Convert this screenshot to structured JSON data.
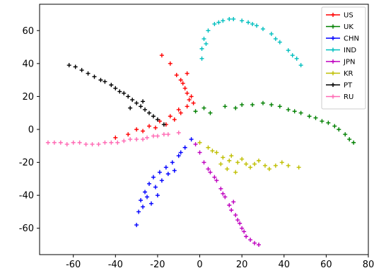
{
  "chart_data": {
    "type": "scatter",
    "xlim": [
      -76,
      80
    ],
    "ylim": [
      -76,
      76
    ],
    "x_ticks": [
      -60,
      -40,
      -20,
      0,
      20,
      40,
      60,
      80
    ],
    "y_ticks": [
      -60,
      -40,
      -20,
      0,
      20,
      40,
      60
    ],
    "grid": false,
    "legend_position": "top-right",
    "marker": "+",
    "series": [
      {
        "name": "US",
        "color": "#ff0000",
        "points": [
          [
            -18,
            45
          ],
          [
            -14,
            40
          ],
          [
            -11,
            33
          ],
          [
            -8,
            28
          ],
          [
            -6,
            22
          ],
          [
            -5,
            18
          ],
          [
            -6,
            14
          ],
          [
            -9,
            10
          ],
          [
            -12,
            6
          ],
          [
            -16,
            3
          ],
          [
            -21,
            1
          ],
          [
            -27,
            -1
          ],
          [
            -34,
            -3
          ],
          [
            -40,
            -5
          ],
          [
            -9,
            30
          ],
          [
            -7,
            25
          ],
          [
            -4,
            20
          ],
          [
            -10,
            12
          ],
          [
            -14,
            8
          ],
          [
            -19,
            5
          ],
          [
            -24,
            2
          ],
          [
            -30,
            0
          ],
          [
            -6,
            34
          ],
          [
            -3,
            16
          ]
        ]
      },
      {
        "name": "UK",
        "color": "#008000",
        "points": [
          [
            20,
            15
          ],
          [
            30,
            16
          ],
          [
            38,
            14
          ],
          [
            45,
            11
          ],
          [
            52,
            8
          ],
          [
            58,
            5
          ],
          [
            64,
            2
          ],
          [
            69,
            -3
          ],
          [
            73,
            -8
          ],
          [
            25,
            15
          ],
          [
            34,
            15
          ],
          [
            42,
            12
          ],
          [
            48,
            10
          ],
          [
            55,
            7
          ],
          [
            61,
            4
          ],
          [
            66,
            0
          ],
          [
            71,
            -6
          ],
          [
            -2,
            11
          ],
          [
            5,
            10
          ],
          [
            12,
            14
          ],
          [
            17,
            13
          ],
          [
            2,
            13
          ]
        ]
      },
      {
        "name": "CHN",
        "color": "#0000ff",
        "points": [
          [
            -30,
            -58
          ],
          [
            -29,
            -50
          ],
          [
            -28,
            -43
          ],
          [
            -26,
            -38
          ],
          [
            -24,
            -33
          ],
          [
            -22,
            -29
          ],
          [
            -19,
            -26
          ],
          [
            -16,
            -23
          ],
          [
            -13,
            -20
          ],
          [
            -10,
            -16
          ],
          [
            -7,
            -11
          ],
          [
            -4,
            -6
          ],
          [
            -27,
            -47
          ],
          [
            -25,
            -41
          ],
          [
            -21,
            -35
          ],
          [
            -18,
            -31
          ],
          [
            -15,
            -27
          ],
          [
            -20,
            -40
          ],
          [
            -23,
            -45
          ],
          [
            -12,
            -25
          ],
          [
            -9,
            -14
          ]
        ]
      },
      {
        "name": "IND",
        "color": "#00bfbf",
        "points": [
          [
            1,
            43
          ],
          [
            1,
            49
          ],
          [
            2,
            55
          ],
          [
            4,
            60
          ],
          [
            7,
            64
          ],
          [
            11,
            66
          ],
          [
            16,
            67
          ],
          [
            20,
            66
          ],
          [
            25,
            64
          ],
          [
            30,
            61
          ],
          [
            34,
            58
          ],
          [
            38,
            53
          ],
          [
            42,
            48
          ],
          [
            46,
            43
          ],
          [
            48,
            39
          ],
          [
            3,
            52
          ],
          [
            9,
            65
          ],
          [
            14,
            67
          ],
          [
            23,
            65
          ],
          [
            27,
            63
          ],
          [
            36,
            55
          ],
          [
            44,
            45
          ]
        ]
      },
      {
        "name": "JPN",
        "color": "#bf00bf",
        "points": [
          [
            28,
            -70
          ],
          [
            24,
            -67
          ],
          [
            21,
            -62
          ],
          [
            19,
            -57
          ],
          [
            17,
            -52
          ],
          [
            14,
            -46
          ],
          [
            12,
            -41
          ],
          [
            10,
            -36
          ],
          [
            8,
            -31
          ],
          [
            5,
            -26
          ],
          [
            2,
            -20
          ],
          [
            0,
            -14
          ],
          [
            -2,
            -9
          ],
          [
            26,
            -69
          ],
          [
            22,
            -65
          ],
          [
            18,
            -55
          ],
          [
            15,
            -49
          ],
          [
            11,
            -39
          ],
          [
            7,
            -29
          ],
          [
            4,
            -24
          ],
          [
            16,
            -44
          ],
          [
            20,
            -60
          ]
        ]
      },
      {
        "name": "KR",
        "color": "#bfbf00",
        "points": [
          [
            0,
            -8
          ],
          [
            4,
            -11
          ],
          [
            8,
            -14
          ],
          [
            11,
            -17
          ],
          [
            14,
            -19
          ],
          [
            18,
            -20
          ],
          [
            22,
            -21
          ],
          [
            26,
            -21
          ],
          [
            31,
            -22
          ],
          [
            36,
            -22
          ],
          [
            42,
            -22
          ],
          [
            47,
            -23
          ],
          [
            10,
            -21
          ],
          [
            13,
            -24
          ],
          [
            15,
            -16
          ],
          [
            20,
            -18
          ],
          [
            24,
            -23
          ],
          [
            28,
            -19
          ],
          [
            33,
            -24
          ],
          [
            39,
            -20
          ],
          [
            6,
            -13
          ],
          [
            17,
            -26
          ]
        ]
      },
      {
        "name": "PT",
        "color": "#000000",
        "points": [
          [
            -62,
            39
          ],
          [
            -56,
            36
          ],
          [
            -50,
            32
          ],
          [
            -45,
            29
          ],
          [
            -40,
            25
          ],
          [
            -36,
            22
          ],
          [
            -32,
            18
          ],
          [
            -28,
            14
          ],
          [
            -24,
            10
          ],
          [
            -20,
            6
          ],
          [
            -17,
            3
          ],
          [
            -59,
            38
          ],
          [
            -53,
            34
          ],
          [
            -47,
            30
          ],
          [
            -42,
            27
          ],
          [
            -38,
            23
          ],
          [
            -34,
            20
          ],
          [
            -30,
            16
          ],
          [
            -26,
            12
          ],
          [
            -22,
            8
          ],
          [
            -33,
            13
          ],
          [
            -27,
            17
          ]
        ]
      },
      {
        "name": "RU",
        "color": "#ff69b4",
        "points": [
          [
            -72,
            -8
          ],
          [
            -66,
            -8
          ],
          [
            -60,
            -8
          ],
          [
            -54,
            -9
          ],
          [
            -48,
            -9
          ],
          [
            -42,
            -8
          ],
          [
            -36,
            -7
          ],
          [
            -30,
            -6
          ],
          [
            -25,
            -5
          ],
          [
            -20,
            -4
          ],
          [
            -15,
            -3
          ],
          [
            -10,
            -2
          ],
          [
            -69,
            -8
          ],
          [
            -63,
            -9
          ],
          [
            -57,
            -8
          ],
          [
            -51,
            -9
          ],
          [
            -45,
            -8
          ],
          [
            -39,
            -8
          ],
          [
            -33,
            -6
          ],
          [
            -27,
            -6
          ],
          [
            -22,
            -4
          ],
          [
            -17,
            -3
          ]
        ]
      }
    ]
  }
}
